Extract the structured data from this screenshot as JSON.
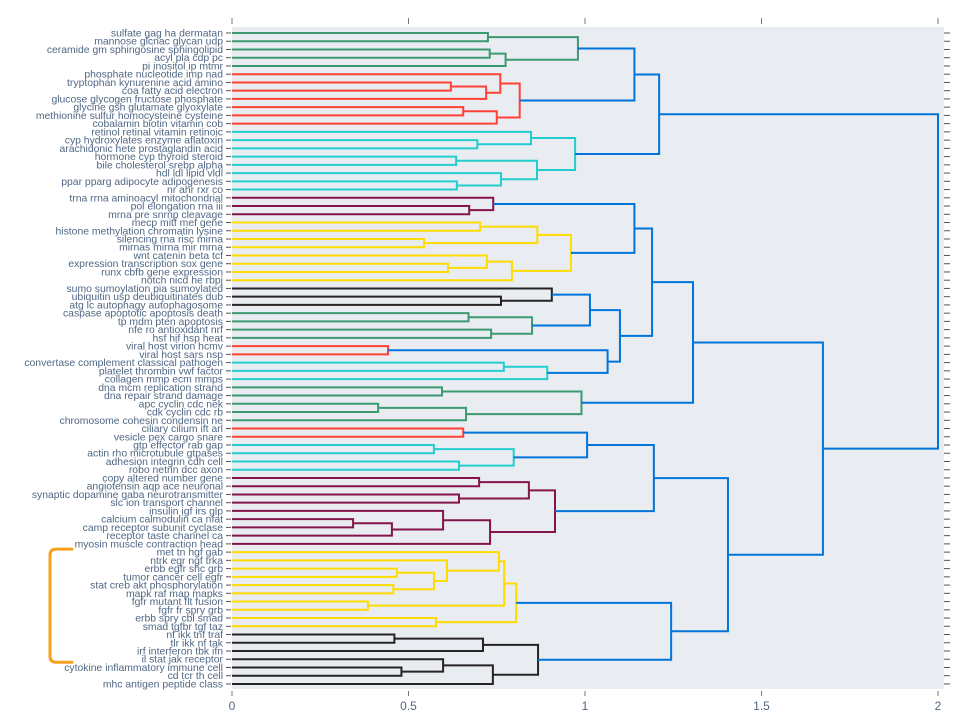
{
  "chart_data": {
    "type": "dendrogram",
    "orientation": "left-to-right, leaves on left",
    "xlim": [
      0,
      2
    ],
    "x_ticks": [
      "0",
      "0.5",
      "1",
      "1.5",
      "2"
    ],
    "x_tick_values": [
      0,
      0.5,
      1,
      1.5,
      2
    ],
    "xlabel": "",
    "ylabel": "",
    "grid": false,
    "colors": {
      "G": "#3d9970",
      "R": "#ff4136",
      "C": "#23cdcd",
      "P": "#85144b",
      "Y": "#ffdc00",
      "K": "#282323",
      "B": "#0074d9"
    },
    "highlight_bracket_color": "#f5a31f",
    "highlight_bracket_leaf_range": [
      63,
      76
    ],
    "leaves": [
      "sulfate gag ha dermatan",
      "mannose glcnac glycan udp",
      "ceramide gm sphingosine sphingolipid",
      "acyl pla cdp pc",
      "pi inositol ip mtmr",
      "phosphate nucleotide imp nad",
      "tryptophan kynurenine acid amino",
      "coa fatty acid electron",
      "glucose glycogen fructose phosphate",
      "glycine gsh glutamate glyoxylate",
      "methionine sulfur homocysteine cysteine",
      "cobalamin biotin vitamin cob",
      "retinol retinal vitamin retinoic",
      "cyp hydroxylates enzyme aflatoxin",
      "arachidonic hete prostaglandin acid",
      "hormone cyp thyroid steroid",
      "bile cholesterol srebp alpha",
      "hdl ldl lipid vldl",
      "ppar pparg adipocyte adipogenesis",
      "nr ahr rxr co",
      "trna rrna aminoacyl mitochondrial",
      "pol elongation rna iii",
      "mrna pre snrnp cleavage",
      "mecp mitf mef gene",
      "histone methylation chromatin lysine",
      "silencing rna risc mirna",
      "mirnas mirna mir mrna",
      "wnt catenin beta tcf",
      "expression transcription sox gene",
      "runx cbfb gene expression",
      "notch nicd he rbpj",
      "sumo sumoylation pia sumoylated",
      "ubiquitin usp deubiquitinates dub",
      "atg lc autophagy autophagosome",
      "caspase apoptotic apoptosis death",
      "tp mdm pten apoptosis",
      "nfe ro antioxidant nrf",
      "hsf hif hsp heat",
      "viral host virion hcmv",
      "viral host sars nsp",
      "convertase complement classical pathogen",
      "platelet thrombin vwf factor",
      "collagen mmp ecm mmps",
      "dna mcm replication strand",
      "dna repair strand damage",
      "apc cyclin cdc nek",
      "cdk cyclin cdc rb",
      "chromosome cohesin condensin ne",
      "ciliary cilium ift arl",
      "vesicle pex cargo snare",
      "gtp effector rab gap",
      "actin rho microtubule gtpases",
      "adhesion integrin cdh cell",
      "robo netrin dcc axon",
      "copy altered number gene",
      "angiotensin aqp ace neuronal",
      "synaptic dopamine gaba neurotransmitter",
      "slc ion transport channel",
      "insulin igf irs glp",
      "calcium calmodulin ca nfat",
      "camp receptor subunit cyclase",
      "receptor taste channel ca",
      "myosin muscle contraction head",
      "met tn hgf gab",
      "ntrk egr ngf trka",
      "erbb egfr shc grb",
      "tumor cancer cell egfr",
      "stat creb akt phosphorylation",
      "mapk raf map mapks",
      "fgfr mutant flt fusion",
      "fgfr fr spry grb",
      "erbb spry cbl smad",
      "smad tgfbr tgf taz",
      "nf ikk tnf traf",
      "tlr ikk nf tak",
      "irf interferon tbk ifn",
      "il stat jak receptor",
      "cytokine inflammatory immune cell",
      "cd tcr th cell",
      "mhc antigen peptide class"
    ],
    "tree_format": "[merge_height, color_key, left, right]; integers are leaf indices",
    "tree": [
      2.0,
      "B",
      [
        1.21,
        "B",
        [
          1.14,
          "B",
          [
            0.98,
            "G",
            [
              0.725,
              "G",
              0,
              1
            ],
            [
              0.775,
              "G",
              [
                0.73,
                "G",
                2,
                3
              ],
              4
            ]
          ],
          [
            0.815,
            "R",
            [
              0.76,
              "R",
              5,
              [
                0.72,
                "R",
                [
                  0.62,
                  "R",
                  6,
                  7
                ],
                8
              ]
            ],
            [
              0.75,
              "R",
              [
                0.655,
                "R",
                9,
                10
              ],
              11
            ]
          ]
        ],
        [
          0.972,
          "C",
          [
            0.847,
            "C",
            12,
            [
              0.695,
              "C",
              13,
              14
            ]
          ],
          [
            0.864,
            "C",
            [
              0.635,
              "C",
              15,
              16
            ],
            [
              0.762,
              "C",
              17,
              [
                0.637,
                "C",
                18,
                19
              ]
            ]
          ]
        ]
      ],
      [
        1.674,
        "B",
        [
          1.306,
          "B",
          [
            1.19,
            "B",
            [
              1.14,
              "B",
              [
                0.74,
                "P",
                20,
                [
                  0.672,
                  "P",
                  21,
                  22
                ]
              ],
              [
                0.96,
                "Y",
                [
                  0.865,
                  "Y",
                  [
                    0.703,
                    "Y",
                    23,
                    24
                  ],
                  [
                    0.544,
                    "Y",
                    25,
                    26
                  ]
                ],
                [
                  0.793,
                  "Y",
                  [
                    0.722,
                    "Y",
                    27,
                    [
                      0.612,
                      "Y",
                      28,
                      29
                    ]
                  ],
                  30
                ]
              ]
            ],
            [
              1.099,
              "B",
              [
                1.014,
                "B",
                [
                  0.906,
                  "K",
                  31,
                  [
                    0.762,
                    "K",
                    32,
                    33
                  ]
                ],
                [
                  0.85,
                  "G",
                  [
                    0.67,
                    "G",
                    34,
                    35
                  ],
                  [
                    0.734,
                    "G",
                    36,
                    37
                  ]
                ]
              ],
              [
                1.064,
                "B",
                [
                  0.442,
                  "R",
                  38,
                  39
                ],
                [
                  0.893,
                  "C",
                  [
                    0.77,
                    "C",
                    40,
                    41
                  ],
                  42
                ]
              ]
            ]
          ],
          [
            0.99,
            "G",
            [
              0.595,
              "G",
              43,
              44
            ],
            [
              0.663,
              "G",
              [
                0.414,
                "G",
                45,
                46
              ],
              47
            ]
          ]
        ],
        [
          1.405,
          "B",
          [
            1.195,
            "B",
            [
              1.006,
              "B",
              [
                0.655,
                "R",
                48,
                49
              ],
              [
                0.798,
                "C",
                [
                  0.572,
                  "C",
                  50,
                  51
                ],
                [
                  0.643,
                  "C",
                  52,
                  53
                ]
              ]
            ],
            [
              0.915,
              "P",
              [
                0.841,
                "P",
                [
                  0.7,
                  "P",
                  54,
                  55
                ],
                [
                  0.643,
                  "P",
                  56,
                  57
                ]
              ],
              [
                0.731,
                "P",
                [
                  0.598,
                  "P",
                  58,
                  [
                    0.453,
                    "P",
                    [
                      0.343,
                      "P",
                      59,
                      60
                    ],
                    61
                  ]
                ],
                62
              ]
            ]
          ],
          [
            1.244,
            "B",
            [
              0.805,
              "Y",
              [
                0.771,
                "Y",
                [
                  0.756,
                  "Y",
                  63,
                  [
                    0.609,
                    "Y",
                    64,
                    [
                      0.572,
                      "Y",
                      [
                        0.467,
                        "Y",
                        65,
                        66
                      ],
                      [
                        0.457,
                        "Y",
                        67,
                        68
                      ]
                    ]
                  ]
                ],
                [
                  0.385,
                  "Y",
                  69,
                  70
                ]
              ],
              [
                0.578,
                "Y",
                71,
                72
              ]
            ],
            [
              0.867,
              "K",
              [
                0.711,
                "K",
                [
                  0.46,
                  "K",
                  73,
                  74
                ],
                75
              ],
              [
                0.739,
                "K",
                [
                  0.598,
                  "K",
                  76,
                  [
                    0.48,
                    "K",
                    77,
                    78
                  ]
                ],
                79
              ]
            ]
          ]
        ]
      ]
    ]
  }
}
